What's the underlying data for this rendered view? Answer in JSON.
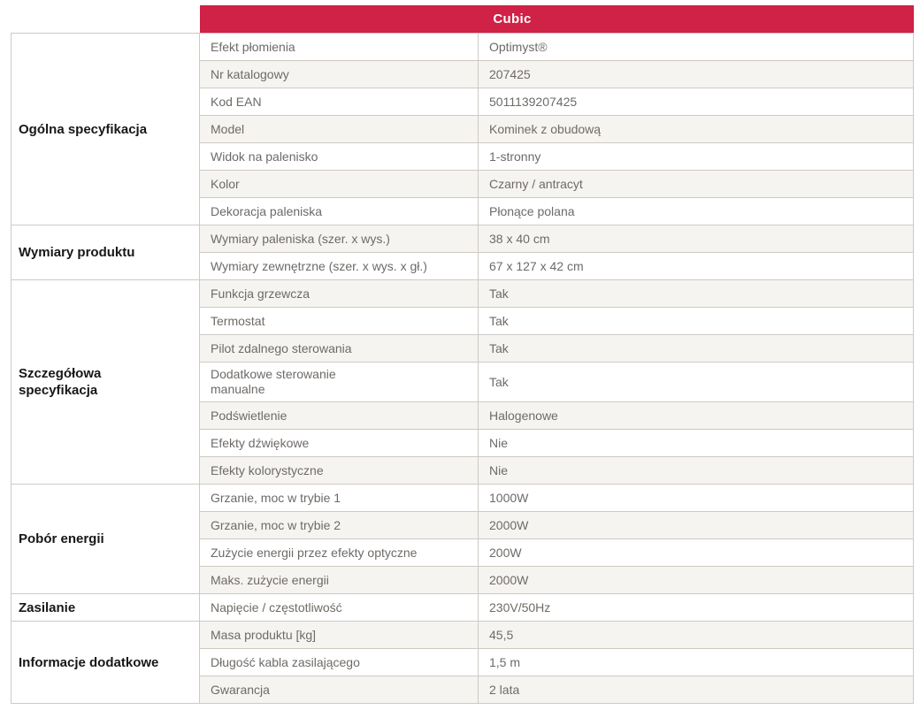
{
  "header": {
    "product_name": "Cubic"
  },
  "colors": {
    "accent_red": "#d02146",
    "header_text": "#ffffff",
    "alt_row_bg": "#f6f4f1",
    "border": "#cfc9c2",
    "body_text": "#6e6a67",
    "category_text": "#17171a"
  },
  "sections": [
    {
      "category": "Ogólna specyfikacja",
      "rows": [
        {
          "label": "Efekt płomienia",
          "value": "Optimyst®"
        },
        {
          "label": "Nr katalogowy",
          "value": "207425"
        },
        {
          "label": "Kod EAN",
          "value": "5011139207425"
        },
        {
          "label": "Model",
          "value": "Kominek z obudową"
        },
        {
          "label": "Widok na palenisko",
          "value": "1-stronny"
        },
        {
          "label": "Kolor",
          "value": "Czarny / antracyt"
        },
        {
          "label": "Dekoracja paleniska",
          "value": "Płonące polana"
        }
      ]
    },
    {
      "category": "Wymiary produktu",
      "rows": [
        {
          "label": "Wymiary paleniska (szer. x wys.)",
          "value": "38 x 40 cm"
        },
        {
          "label": "Wymiary zewnętrzne (szer. x wys. x gł.)",
          "value": "67 x 127 x 42 cm"
        }
      ]
    },
    {
      "category": "Szczegółowa\nspecyfikacja",
      "rows": [
        {
          "label": "Funkcja grzewcza",
          "value": "Tak"
        },
        {
          "label": "Termostat",
          "value": "Tak"
        },
        {
          "label": "Pilot zdalnego sterowania",
          "value": "Tak"
        },
        {
          "label": "Dodatkowe sterowanie\nmanualne",
          "value": "Tak"
        },
        {
          "label": "Podświetlenie",
          "value": "Halogenowe"
        },
        {
          "label": "Efekty dźwiękowe",
          "value": "Nie"
        },
        {
          "label": "Efekty kolorystyczne",
          "value": "Nie"
        }
      ]
    },
    {
      "category": "Pobór energii",
      "rows": [
        {
          "label": "Grzanie, moc w trybie 1",
          "value": "1000W"
        },
        {
          "label": "Grzanie, moc w trybie 2",
          "value": "2000W"
        },
        {
          "label": "Zużycie energii przez efekty optyczne",
          "value": "200W"
        },
        {
          "label": "Maks. zużycie energii",
          "value": "2000W"
        }
      ]
    },
    {
      "category": "Zasilanie",
      "rows": [
        {
          "label": "Napięcie / częstotliwość",
          "value": "230V/50Hz"
        }
      ]
    },
    {
      "category": "Informacje dodatkowe",
      "rows": [
        {
          "label": "Masa produktu [kg]",
          "value": "45,5"
        },
        {
          "label": "Długość kabla zasilającego",
          "value": "1,5 m"
        },
        {
          "label": "Gwarancja",
          "value": "2 lata"
        }
      ]
    }
  ]
}
